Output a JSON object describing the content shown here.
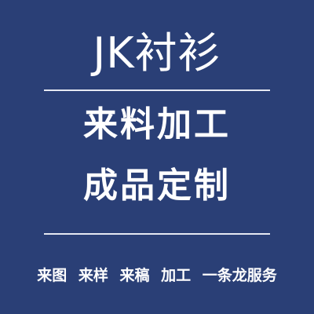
{
  "colors": {
    "background": "#2a3f76",
    "text": "#ffffff",
    "divider": "#e6e9f2"
  },
  "header": {
    "title": "JK衬衫"
  },
  "main": {
    "line1": "来料加工",
    "line2": "成品定制"
  },
  "footer": {
    "items": [
      "来图",
      "来样",
      "来稿",
      "加工",
      "一条龙服务"
    ]
  }
}
